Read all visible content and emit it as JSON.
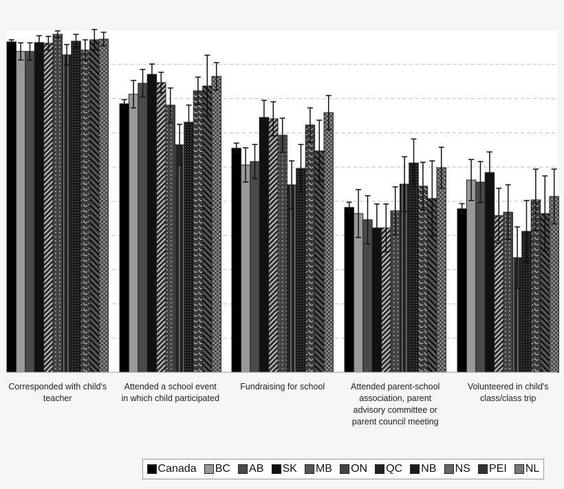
{
  "chart_data": {
    "type": "bar",
    "title": "",
    "xlabel": "",
    "ylabel": "",
    "ylim": [
      0,
      100
    ],
    "grid": true,
    "legend_position": "bottom-right",
    "categories": [
      [
        "Corresponded with child's",
        "teacher"
      ],
      [
        "Attended a school event",
        "in which child participated"
      ],
      [
        "Fundraising for school"
      ],
      [
        "Attended parent-school",
        "association, parent",
        "advisory committee or",
        "parent council meeting"
      ],
      [
        "Volunteered in child's",
        "class/class trip"
      ]
    ],
    "series": [
      {
        "name": "Canada",
        "values": [
          96.6,
          78.5,
          65.5,
          48.2,
          47.8
        ],
        "errors": [
          0.6,
          1.2,
          1.5,
          1.5,
          1.5
        ]
      },
      {
        "name": "BC",
        "values": [
          93.8,
          81.3,
          60.6,
          46.4,
          56.2
        ],
        "errors": [
          2.5,
          4,
          5,
          7,
          6
        ]
      },
      {
        "name": "AB",
        "values": [
          93.8,
          84.5,
          61.6,
          44.6,
          55.6
        ],
        "errors": [
          2.5,
          4,
          5,
          7,
          6
        ]
      },
      {
        "name": "SK",
        "values": [
          96.4,
          87.1,
          74.5,
          42.2,
          58.4
        ],
        "errors": [
          2,
          3,
          5,
          7,
          6
        ]
      },
      {
        "name": "MB",
        "values": [
          96.2,
          84.7,
          74.1,
          42.2,
          45.8
        ],
        "errors": [
          2,
          3,
          5,
          7,
          8
        ]
      },
      {
        "name": "ON",
        "values": [
          98.8,
          78.1,
          69.3,
          47.2,
          46.8
        ],
        "errors": [
          1,
          5,
          5,
          7,
          8
        ]
      },
      {
        "name": "QC",
        "values": [
          92.8,
          66.5,
          54.8,
          55.0,
          33.5
        ],
        "errors": [
          3,
          6,
          7,
          8,
          9
        ]
      },
      {
        "name": "NB",
        "values": [
          96.8,
          73.1,
          59.6,
          61.2,
          41.2
        ],
        "errors": [
          2,
          5,
          7,
          7,
          9
        ]
      },
      {
        "name": "NS",
        "values": [
          94.2,
          82.3,
          72.3,
          54.4,
          50.4
        ],
        "errors": [
          3,
          4,
          5,
          7,
          9
        ]
      },
      {
        "name": "PEI",
        "values": [
          97.2,
          83.7,
          64.7,
          50.8,
          46.4
        ],
        "errors": [
          3,
          9,
          9,
          11,
          11
        ]
      },
      {
        "name": "NL",
        "values": [
          97.4,
          86.5,
          75.9,
          59.8,
          51.4
        ],
        "errors": [
          2,
          4,
          5,
          6,
          8
        ]
      }
    ]
  }
}
